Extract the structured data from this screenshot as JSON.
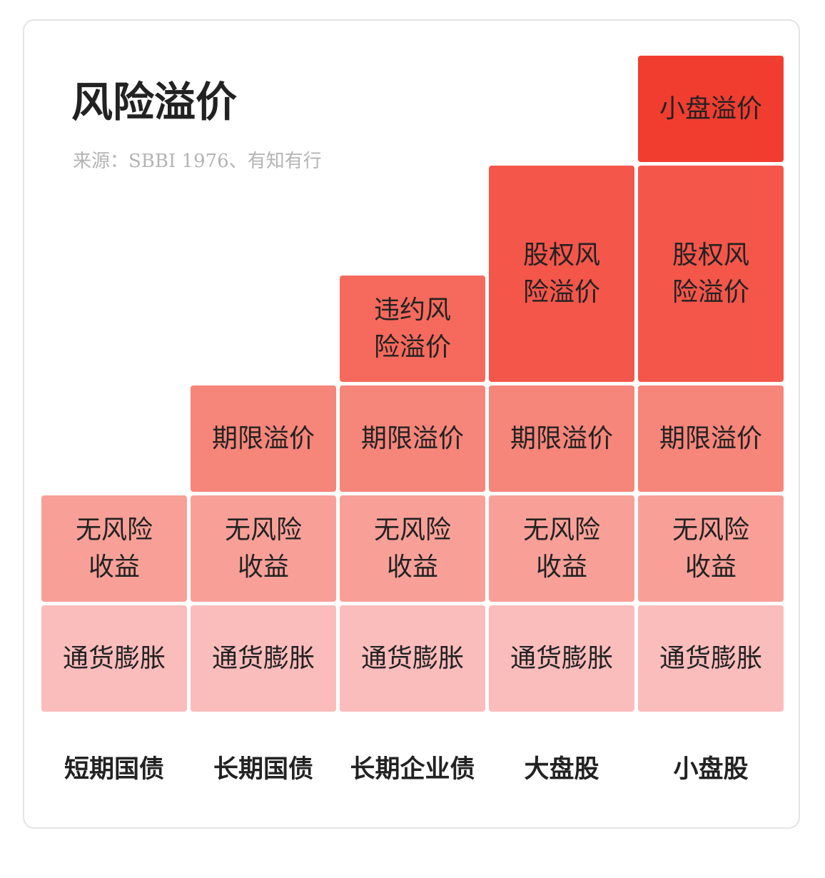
{
  "title": "风险溢价",
  "source": "来源：SBBI 1976、有知有行",
  "colors": {
    "inflation": "#fbbcbc",
    "risk_free": "#f8a098",
    "term": "#f6857a",
    "default_risk": "#f56a5c",
    "equity": "#f4564a",
    "small_cap": "#f13d30"
  },
  "blocks": {
    "inflation": "通货膨胀",
    "risk_free": "无风险\n收益",
    "term": "期限溢价",
    "default_risk": "违约风\n险溢价",
    "equity": "股权风\n险溢价",
    "small_cap": "小盘溢价"
  },
  "columns": [
    {
      "label": "短期国债",
      "layers": [
        "inflation",
        "risk_free"
      ]
    },
    {
      "label": "长期国债",
      "layers": [
        "inflation",
        "risk_free",
        "term"
      ]
    },
    {
      "label": "长期企业债",
      "layers": [
        "inflation",
        "risk_free",
        "term",
        "default_risk"
      ]
    },
    {
      "label": "大盘股",
      "layers": [
        "inflation",
        "risk_free",
        "term",
        "equity"
      ]
    },
    {
      "label": "小盘股",
      "layers": [
        "inflation",
        "risk_free",
        "term",
        "equity",
        "small_cap"
      ]
    }
  ]
}
